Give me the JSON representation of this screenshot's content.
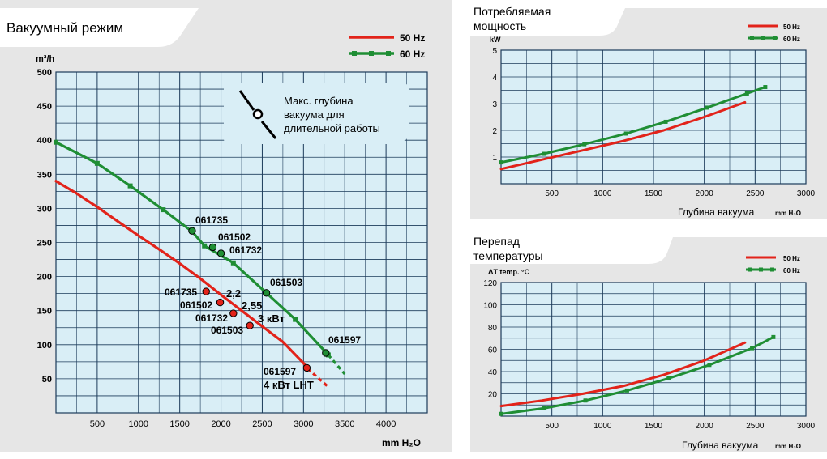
{
  "colors": {
    "panel_bg": "#e6e6e6",
    "plot_bg": "#d9eef6",
    "grid": "#1c3b5a",
    "line_50hz": "#e2231a",
    "line_60hz": "#1f8e34",
    "text": "#000000",
    "callout_bg": "#d9eef6"
  },
  "chart_data": [
    {
      "type": "line",
      "title": "Вакуумный режим",
      "xlabel": "mm H₂O",
      "ylabel": "m³/h",
      "xlim": [
        0,
        4500
      ],
      "ylim": [
        0,
        500
      ],
      "xticks": [
        500,
        1000,
        1500,
        2000,
        2500,
        3000,
        3500,
        4000
      ],
      "yticks": [
        50,
        100,
        150,
        200,
        250,
        300,
        350,
        400,
        450,
        500
      ],
      "grid": true,
      "legend": "top-right",
      "series": [
        {
          "name": "50 Hz",
          "color_key": "line_50hz",
          "markers": false,
          "x": [
            0,
            250,
            500,
            750,
            1000,
            1250,
            1500,
            1750,
            2000,
            2250,
            2500,
            2750,
            3000,
            3050
          ],
          "y": [
            340,
            322,
            302,
            281,
            260,
            240,
            219,
            197,
            173,
            150,
            127,
            104,
            73,
            65
          ],
          "dashed": {
            "x": [
              3050,
              3300
            ],
            "y": [
              65,
              38
            ]
          }
        },
        {
          "name": "60 Hz",
          "color_key": "line_60hz",
          "markers": true,
          "x": [
            0,
            500,
            900,
            1300,
            1650,
            1800,
            2150,
            2550,
            2900,
            3300
          ],
          "y": [
            397,
            366,
            333,
            298,
            266,
            245,
            220,
            176,
            137,
            85
          ],
          "dashed": {
            "x": [
              3300,
              3500
            ],
            "y": [
              85,
              57
            ]
          }
        }
      ],
      "model_points": [
        {
          "series": "60 Hz",
          "label": "061735",
          "x": 1650,
          "y": 267
        },
        {
          "series": "60 Hz",
          "label": "061502",
          "x": 1900,
          "y": 243
        },
        {
          "series": "60 Hz",
          "label": "061732",
          "x": 2000,
          "y": 234
        },
        {
          "series": "60 Hz",
          "label": "061503",
          "x": 2550,
          "y": 176
        },
        {
          "series": "60 Hz",
          "label": "061597",
          "x": 3270,
          "y": 88
        },
        {
          "series": "50 Hz",
          "label": "061735",
          "x": 1820,
          "y": 178
        },
        {
          "series": "50 Hz",
          "label": "061502",
          "x": 1990,
          "y": 162
        },
        {
          "series": "50 Hz",
          "label": "061732",
          "x": 2150,
          "y": 146
        },
        {
          "series": "50 Hz",
          "label": "061503",
          "x": 2350,
          "y": 128
        },
        {
          "series": "50 Hz",
          "label": "061597",
          "x": 3040,
          "y": 66
        }
      ],
      "annotations": {
        "power_22": "2,2",
        "power_255": "2,55",
        "power_3": "3 кВт",
        "power_4": "4 кВт LHT",
        "callout": [
          "Макс. глубина",
          "вакуума для",
          "длительной работы"
        ]
      }
    },
    {
      "type": "line",
      "title": "Потребляемая мощность",
      "title_lines": [
        "Потребляемая",
        "мощность"
      ],
      "xlabel": "Глубина вакуума",
      "xunit": "mm H₂O",
      "ylabel": "kW",
      "xlim": [
        0,
        3000
      ],
      "ylim": [
        0,
        5
      ],
      "xticks": [
        500,
        1000,
        1500,
        2000,
        2500,
        3000
      ],
      "yticks": [
        1,
        2,
        3,
        4,
        5
      ],
      "grid": true,
      "legend": "top-right",
      "series": [
        {
          "name": "50 Hz",
          "color_key": "line_50hz",
          "markers": false,
          "x": [
            0,
            400,
            800,
            1200,
            1600,
            2000,
            2400
          ],
          "y": [
            0.55,
            0.9,
            1.25,
            1.6,
            2.0,
            2.5,
            3.05
          ]
        },
        {
          "name": "60 Hz",
          "color_key": "line_60hz",
          "markers": true,
          "x": [
            0,
            420,
            820,
            1230,
            1620,
            2030,
            2420,
            2600
          ],
          "y": [
            0.8,
            1.12,
            1.48,
            1.88,
            2.32,
            2.85,
            3.38,
            3.62
          ]
        }
      ]
    },
    {
      "type": "line",
      "title": "Перепад температуры",
      "title_lines": [
        "Перепад",
        "температуры"
      ],
      "xlabel": "Глубина вакуума",
      "xunit": "mm H₂O",
      "ylabel": "ΔT  temp. °C",
      "xlim": [
        0,
        3000
      ],
      "ylim": [
        0,
        120
      ],
      "xticks": [
        500,
        1000,
        1500,
        2000,
        2500,
        3000
      ],
      "yticks": [
        20,
        40,
        60,
        80,
        100,
        120
      ],
      "grid": true,
      "legend": "top-right",
      "series": [
        {
          "name": "50 Hz",
          "color_key": "line_50hz",
          "markers": false,
          "x": [
            0,
            400,
            800,
            1200,
            1600,
            2000,
            2400
          ],
          "y": [
            9,
            14,
            20,
            27,
            37,
            50,
            66
          ]
        },
        {
          "name": "60 Hz",
          "color_key": "line_60hz",
          "markers": true,
          "x": [
            0,
            420,
            830,
            1240,
            1650,
            2050,
            2470,
            2680
          ],
          "y": [
            2,
            7,
            14,
            23,
            34,
            46,
            61,
            71
          ]
        }
      ]
    }
  ]
}
